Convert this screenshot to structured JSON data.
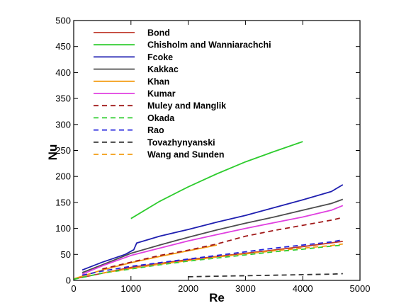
{
  "chart_data": {
    "type": "line",
    "title": "",
    "xlabel": "Re",
    "ylabel": "Nu",
    "xlim": [
      0,
      5000
    ],
    "ylim": [
      0,
      500
    ],
    "xticks": [
      0,
      1000,
      2000,
      3000,
      4000,
      5000
    ],
    "yticks": [
      0,
      50,
      100,
      150,
      200,
      250,
      300,
      350,
      400,
      450,
      500
    ],
    "grid": false,
    "legend_position": "top-left",
    "series": [
      {
        "name": "Bond",
        "color": "#c0392b",
        "dash": "solid",
        "x": [
          0,
          200,
          1000,
          2000,
          3000,
          4000,
          4700
        ],
        "y": [
          3,
          7,
          25,
          40,
          52,
          65,
          75
        ]
      },
      {
        "name": "Chisholm and Wanniarachchi",
        "color": "#2ecc2e",
        "dash": "solid",
        "x": [
          1000,
          1500,
          2000,
          2500,
          3000,
          3500,
          4000
        ],
        "y": [
          119,
          152,
          180,
          205,
          228,
          248,
          267
        ]
      },
      {
        "name": "Fcoke",
        "color": "#1f1fb0",
        "dash": "solid",
        "x": [
          150,
          500,
          900,
          1050,
          1100,
          1500,
          2000,
          2500,
          3000,
          3500,
          4000,
          4500,
          4700
        ],
        "y": [
          20,
          35,
          50,
          59,
          72,
          85,
          98,
          112,
          125,
          140,
          155,
          171,
          184
        ]
      },
      {
        "name": "Kakkac",
        "color": "#4d4d4d",
        "dash": "solid",
        "x": [
          150,
          500,
          1000,
          1500,
          2000,
          2500,
          3000,
          3500,
          4000,
          4500,
          4700
        ],
        "y": [
          15,
          30,
          52,
          68,
          83,
          97,
          110,
          122,
          135,
          148,
          156
        ]
      },
      {
        "name": "Khan",
        "color": "#f39c12",
        "dash": "solid",
        "x": [
          0,
          500,
          1000,
          1500,
          2000,
          2500
        ],
        "y": [
          3,
          20,
          34,
          46,
          57,
          68
        ]
      },
      {
        "name": "Kumar",
        "color": "#e040e0",
        "dash": "solid",
        "x": [
          150,
          500,
          1000,
          1500,
          2000,
          2500,
          3000,
          3500,
          4000,
          4500,
          4700
        ],
        "y": [
          12,
          28,
          48,
          62,
          76,
          88,
          100,
          111,
          122,
          135,
          144
        ]
      },
      {
        "name": "Muley and Manglik",
        "color": "#a01818",
        "dash": "dashed",
        "x": [
          500,
          1000,
          1500,
          2000,
          2500,
          3000,
          3500,
          4000,
          4500,
          4700
        ],
        "y": [
          22,
          35,
          48,
          58,
          70,
          85,
          96,
          106,
          116,
          121
        ]
      },
      {
        "name": "Okada",
        "color": "#2ecc2e",
        "dash": "dashed",
        "x": [
          0,
          500,
          1000,
          1500,
          2000,
          2500,
          3000,
          3500,
          4000,
          4500,
          4700
        ],
        "y": [
          2,
          14,
          22,
          30,
          37,
          43,
          49,
          55,
          60,
          66,
          68
        ]
      },
      {
        "name": "Rao",
        "color": "#2222dd",
        "dash": "dashed",
        "x": [
          150,
          500,
          1000,
          1500,
          2000,
          2500,
          3000,
          3500,
          4000,
          4500,
          4700
        ],
        "y": [
          10,
          18,
          27,
          34,
          41,
          48,
          55,
          62,
          68,
          74,
          78
        ]
      },
      {
        "name": "Tovazhynyanski",
        "color": "#333333",
        "dash": "dashed",
        "x": [
          2000,
          2500,
          3000,
          3500,
          4000,
          4500,
          4700
        ],
        "y": [
          7,
          8,
          9,
          10,
          11,
          12,
          13
        ]
      },
      {
        "name": "Wang and Sunden",
        "color": "#f39c12",
        "dash": "dashed",
        "x": [
          500,
          1000,
          1500,
          2000,
          2500,
          3000,
          3500,
          4000,
          4500,
          4700
        ],
        "y": [
          14,
          23,
          31,
          38,
          45,
          51,
          57,
          62,
          67,
          70
        ]
      }
    ]
  }
}
